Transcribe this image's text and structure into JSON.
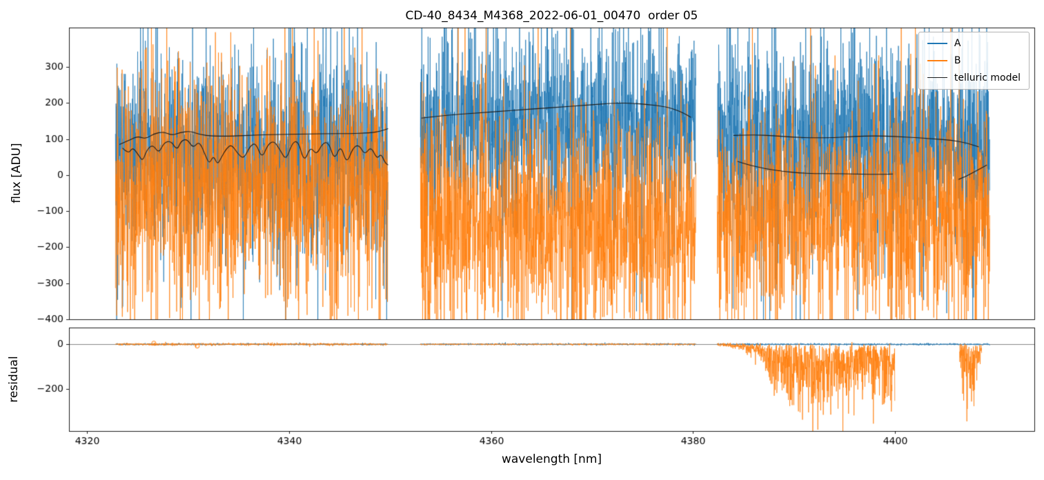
{
  "chart_data": {
    "type": "line",
    "title": "CD-40_8434_M4368_2022-06-01_00470  order 05",
    "xlabel": "wavelength [nm]",
    "x_range": [
      4318.2,
      4413.8
    ],
    "x_ticks": [
      4320,
      4340,
      4360,
      4380,
      4400
    ],
    "legend": [
      {
        "label": "A",
        "color": "#1f77b4",
        "lw": 2
      },
      {
        "label": "B",
        "color": "#ff7f0e",
        "lw": 2
      },
      {
        "label": "telluric model",
        "color": "#1a1a1a",
        "lw": 1
      }
    ],
    "panels": [
      {
        "name": "flux",
        "ylabel": "flux [ADU]",
        "ylim": [
          -400,
          409
        ],
        "yticks": [
          -400,
          -300,
          -200,
          -100,
          0,
          100,
          200,
          300
        ]
      },
      {
        "name": "residual",
        "ylabel": "residual",
        "ylim": [
          -390,
          75
        ],
        "yticks": [
          -200,
          0
        ],
        "zero_line": true,
        "zero_line_color": "#777777"
      }
    ],
    "flux_segments": [
      {
        "x_start": 4322.8,
        "x_end": 4349.8,
        "A": {
          "mean": 55,
          "sigma": 135
        },
        "B": {
          "mean": -35,
          "sigma": 150
        }
      },
      {
        "x_start": 4353.0,
        "x_end": 4380.3,
        "A": {
          "mean": 140,
          "sigma": 125
        },
        "B": {
          "mean": -140,
          "sigma": 140
        }
      },
      {
        "x_start": 4382.4,
        "x_end": 4409.4,
        "A": {
          "mean": 95,
          "sigma": 135
        },
        "B": {
          "mean": -115,
          "sigma": 145
        }
      }
    ],
    "telluric_model": [
      {
        "name": "seg1-upper",
        "points": [
          [
            4323.2,
            85
          ],
          [
            4324.2,
            97
          ],
          [
            4325.0,
            108
          ],
          [
            4325.8,
            100
          ],
          [
            4326.6,
            115
          ],
          [
            4327.6,
            120
          ],
          [
            4328.4,
            110
          ],
          [
            4329.2,
            118
          ],
          [
            4330.2,
            122
          ],
          [
            4331.2,
            112
          ],
          [
            4332.4,
            108
          ],
          [
            4334.0,
            108
          ],
          [
            4336.0,
            110
          ],
          [
            4338.0,
            112
          ],
          [
            4340.0,
            113
          ],
          [
            4342.0,
            114
          ],
          [
            4344.0,
            115
          ],
          [
            4346.0,
            115
          ],
          [
            4348.0,
            117
          ],
          [
            4349.0,
            121
          ],
          [
            4349.8,
            129
          ]
        ]
      },
      {
        "name": "seg1-absorption",
        "points": [
          [
            4323.5,
            75
          ],
          [
            4324.1,
            58
          ],
          [
            4324.5,
            78
          ],
          [
            4325.1,
            55
          ],
          [
            4325.5,
            38
          ],
          [
            4325.9,
            70
          ],
          [
            4326.5,
            85
          ],
          [
            4327.1,
            60
          ],
          [
            4327.6,
            90
          ],
          [
            4328.3,
            95
          ],
          [
            4328.9,
            68
          ],
          [
            4329.3,
            95
          ],
          [
            4329.9,
            100
          ],
          [
            4330.5,
            74
          ],
          [
            4331.1,
            95
          ],
          [
            4331.7,
            55
          ],
          [
            4332.1,
            30
          ],
          [
            4332.5,
            55
          ],
          [
            4332.9,
            28
          ],
          [
            4333.3,
            50
          ],
          [
            4333.8,
            74
          ],
          [
            4334.3,
            85
          ],
          [
            4334.9,
            60
          ],
          [
            4335.5,
            44
          ],
          [
            4336.1,
            80
          ],
          [
            4336.7,
            90
          ],
          [
            4337.3,
            45
          ],
          [
            4337.9,
            85
          ],
          [
            4338.5,
            95
          ],
          [
            4339.1,
            70
          ],
          [
            4339.7,
            40
          ],
          [
            4340.3,
            90
          ],
          [
            4340.9,
            95
          ],
          [
            4341.5,
            34
          ],
          [
            4342.1,
            80
          ],
          [
            4342.7,
            55
          ],
          [
            4343.3,
            88
          ],
          [
            4343.9,
            92
          ],
          [
            4344.5,
            40
          ],
          [
            4345.1,
            85
          ],
          [
            4345.7,
            30
          ],
          [
            4346.3,
            75
          ],
          [
            4346.9,
            85
          ],
          [
            4347.5,
            55
          ],
          [
            4348.1,
            80
          ],
          [
            4348.7,
            44
          ],
          [
            4349.1,
            60
          ],
          [
            4349.5,
            34
          ],
          [
            4349.8,
            28
          ]
        ]
      },
      {
        "name": "seg2",
        "points": [
          [
            4353.1,
            158
          ],
          [
            4355,
            164
          ],
          [
            4357,
            169
          ],
          [
            4359,
            173
          ],
          [
            4361,
            177
          ],
          [
            4363,
            181
          ],
          [
            4365,
            185
          ],
          [
            4367,
            189
          ],
          [
            4369,
            193
          ],
          [
            4371,
            197
          ],
          [
            4372.5,
            200
          ],
          [
            4374,
            199
          ],
          [
            4375.5,
            196
          ],
          [
            4377,
            191
          ],
          [
            4378,
            184
          ],
          [
            4379,
            173
          ],
          [
            4379.8,
            160
          ]
        ]
      },
      {
        "name": "seg3-upper",
        "points": [
          [
            4384,
            110
          ],
          [
            4386,
            112
          ],
          [
            4388,
            109
          ],
          [
            4390,
            105
          ],
          [
            4392,
            103
          ],
          [
            4394,
            104
          ],
          [
            4396,
            107
          ],
          [
            4398,
            109
          ],
          [
            4400,
            107
          ],
          [
            4402,
            104
          ],
          [
            4404,
            100
          ],
          [
            4405.5,
            97
          ],
          [
            4407,
            90
          ],
          [
            4408.3,
            78
          ]
        ]
      },
      {
        "name": "seg3-lower",
        "points": [
          [
            4384.4,
            38
          ],
          [
            4385.5,
            28
          ],
          [
            4386.5,
            22
          ],
          [
            4387.5,
            16
          ],
          [
            4389,
            10
          ],
          [
            4390.5,
            6
          ],
          [
            4392,
            4
          ],
          [
            4394,
            4
          ],
          [
            4396,
            3
          ],
          [
            4397.5,
            2
          ],
          [
            4399,
            2
          ],
          [
            4399.8,
            3
          ]
        ]
      },
      {
        "name": "seg3-right-stub",
        "points": [
          [
            4406.3,
            -12
          ],
          [
            4407,
            -4
          ],
          [
            4407.8,
            8
          ],
          [
            4408.6,
            20
          ],
          [
            4409.1,
            28
          ]
        ]
      }
    ],
    "residual_data": {
      "A_sigma": 2,
      "B_sigma_seg1": 2.5,
      "B_sigma_seg2": 1.8,
      "B_outlier_markers": [
        [
          4326.6,
          5
        ],
        [
          4330.9,
          -8
        ]
      ],
      "B_outlier_envelope": [
        [
          4383,
          8
        ],
        [
          4384,
          20
        ],
        [
          4385,
          40
        ],
        [
          4386,
          70
        ],
        [
          4387,
          120
        ],
        [
          4388,
          200
        ],
        [
          4389,
          300
        ],
        [
          4390,
          360
        ],
        [
          4391,
          340
        ],
        [
          4392,
          360
        ],
        [
          4393,
          320
        ],
        [
          4394,
          300
        ],
        [
          4395,
          340
        ],
        [
          4396,
          270
        ],
        [
          4397,
          220
        ],
        [
          4398,
          280
        ],
        [
          4399,
          340
        ],
        [
          4399.6,
          380
        ],
        [
          4400,
          380
        ]
      ],
      "B_gap": [
        4400,
        4406.4
      ],
      "B_right_cluster": [
        [
          4406.4,
          120
        ],
        [
          4406.8,
          260
        ],
        [
          4407.2,
          330
        ],
        [
          4407.6,
          300
        ],
        [
          4408.1,
          180
        ],
        [
          4408.6,
          60
        ]
      ]
    }
  }
}
